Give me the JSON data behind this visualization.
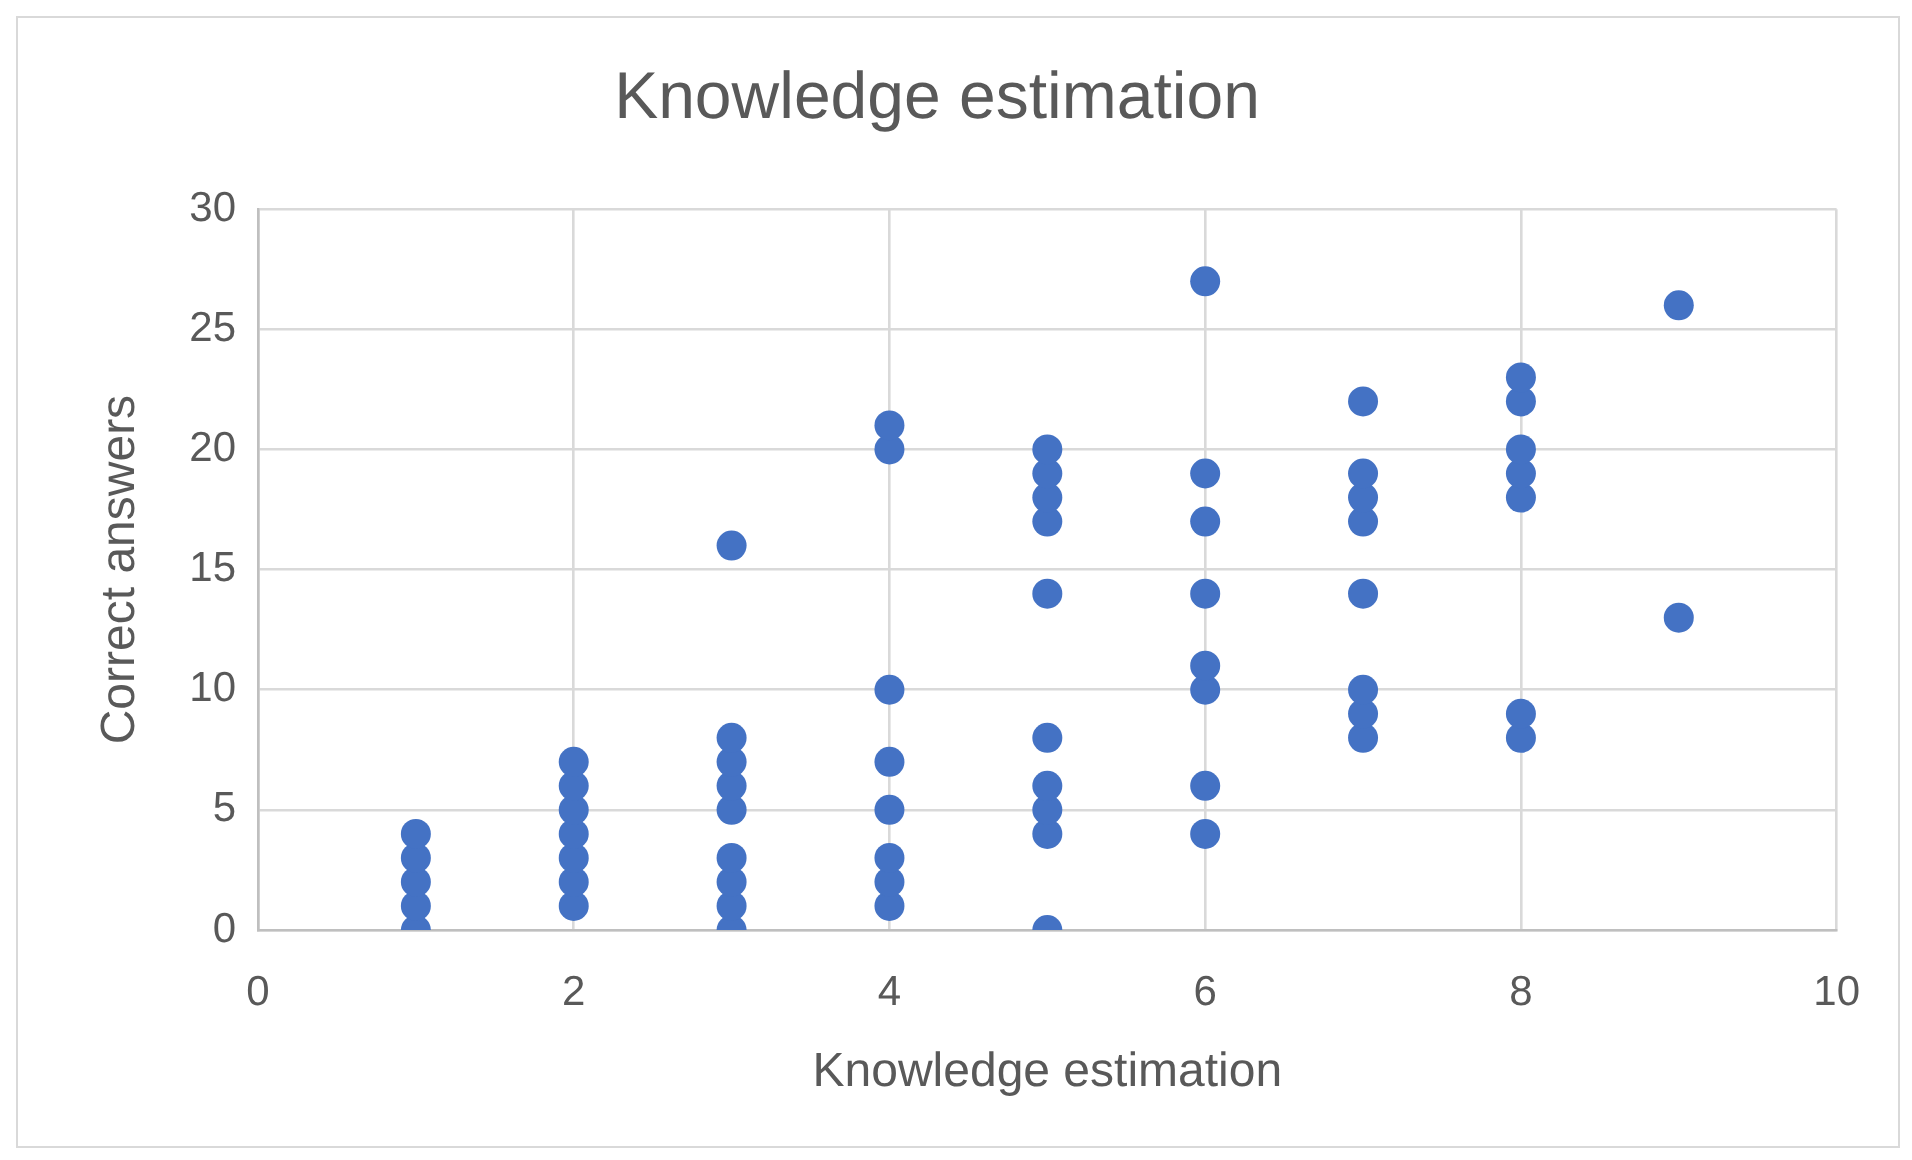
{
  "chart_data": {
    "type": "scatter",
    "title": "Knowledge estimation",
    "xlabel": "Knowledge estimation",
    "ylabel": "Correct answers",
    "x": [
      1,
      1,
      1,
      1,
      1,
      2,
      2,
      2,
      2,
      2,
      2,
      2,
      3,
      3,
      3,
      3,
      3,
      3,
      3,
      3,
      3,
      4,
      4,
      4,
      4,
      4,
      4,
      4,
      4,
      5,
      5,
      5,
      5,
      5,
      5,
      5,
      5,
      5,
      5,
      6,
      6,
      6,
      6,
      6,
      6,
      6,
      6,
      7,
      7,
      7,
      7,
      7,
      7,
      7,
      7,
      8,
      8,
      8,
      8,
      8,
      8,
      8,
      9,
      9
    ],
    "series": [
      {
        "color": "#4472c4",
        "values": [
          0,
          1,
          2,
          3,
          4,
          1,
          2,
          3,
          4,
          5,
          6,
          7,
          0,
          1,
          2,
          3,
          5,
          6,
          7,
          8,
          16,
          1,
          2,
          3,
          5,
          7,
          10,
          20,
          21,
          0,
          4,
          5,
          6,
          8,
          14,
          17,
          18,
          19,
          20,
          4,
          6,
          10,
          11,
          14,
          17,
          19,
          27,
          8,
          9,
          10,
          14,
          17,
          18,
          19,
          22,
          8,
          9,
          18,
          19,
          20,
          22,
          23,
          13,
          26
        ]
      }
    ],
    "xlim": [
      0,
      10
    ],
    "xticks": [
      0,
      2,
      4,
      6,
      8,
      10
    ],
    "ylim": [
      0,
      30
    ],
    "yticks": [
      0,
      5,
      10,
      15,
      20,
      25,
      30
    ],
    "grid": true,
    "marker": "circle"
  }
}
